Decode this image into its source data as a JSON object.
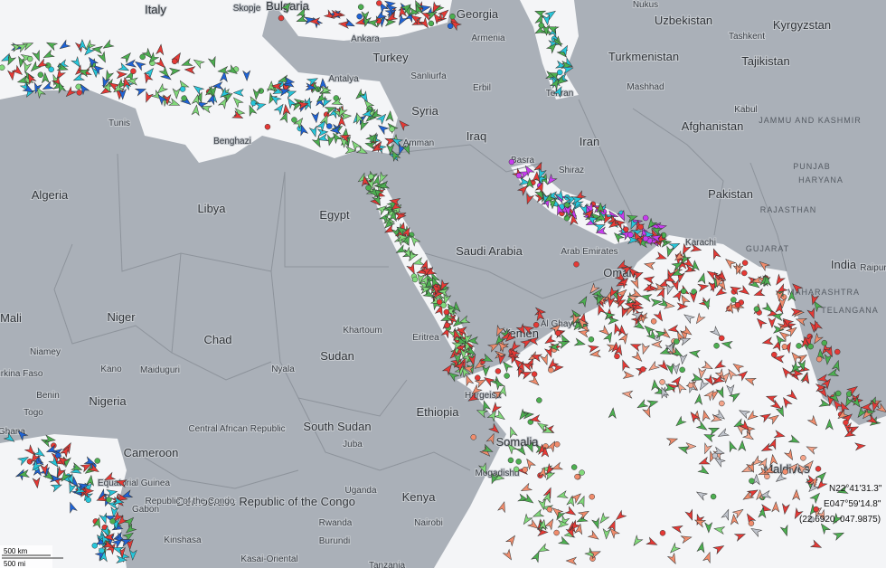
{
  "map": {
    "countries": [
      "Italy",
      "Bulgaria",
      "Georgia",
      "Uzbekistan",
      "Kyrgyzstan",
      "Turkey",
      "Turkmenistan",
      "Tajikistan",
      "Syria",
      "Iraq",
      "Iran",
      "Afghanistan",
      "Algeria",
      "Libya",
      "Egypt",
      "Pakistan",
      "Saudi Arabia",
      "India",
      "Mali",
      "Niger",
      "Chad",
      "Oman",
      "Yemen",
      "Sudan",
      "Nigeria",
      "Eritrea",
      "Ethiopia",
      "South Sudan",
      "Somalia",
      "Cameroon",
      "Central African Republic",
      "Democratic Republic of the Congo",
      "Kenya",
      "Uganda",
      "Maldives"
    ],
    "places": [
      "Skopje",
      "Ankara",
      "Armenia",
      "Tashkent",
      "Antalya",
      "Sanliurfa",
      "Erbil",
      "Tehran",
      "Mashhad",
      "Kabul",
      "Tunis",
      "Benghazi",
      "Amman",
      "Basra",
      "Shiraz",
      "Karachi",
      "JAMMU AND KASHMIR",
      "PUNJAB",
      "HARYANA",
      "RAJASTHAN",
      "GUJARAT",
      "MAHARASHTRA",
      "TELANGANA",
      "Raipur",
      "Arab Emirates",
      "Khartoum",
      "Al Ghaydah",
      "Niamey",
      "Kano",
      "Maiduguri",
      "Benin",
      "Togo",
      "Ghana",
      "Burkina Faso",
      "Nyala",
      "Juba",
      "Hargeisa",
      "Mogadishu",
      "Nairobi",
      "Rwanda",
      "Burundi",
      "Kinshasa",
      "Kasai-Oriental",
      "Republic of the Congo",
      "Gabon",
      "Equatorial Guinea",
      "Nukus",
      "Tanzania"
    ],
    "scale": {
      "km": "500 km",
      "mi": "500 mi"
    },
    "coordinates": {
      "lat": "N22°41'31.3\"",
      "lon": "E047°59'14.8\"",
      "decimal": "(22.6920, 047.9875)"
    }
  }
}
